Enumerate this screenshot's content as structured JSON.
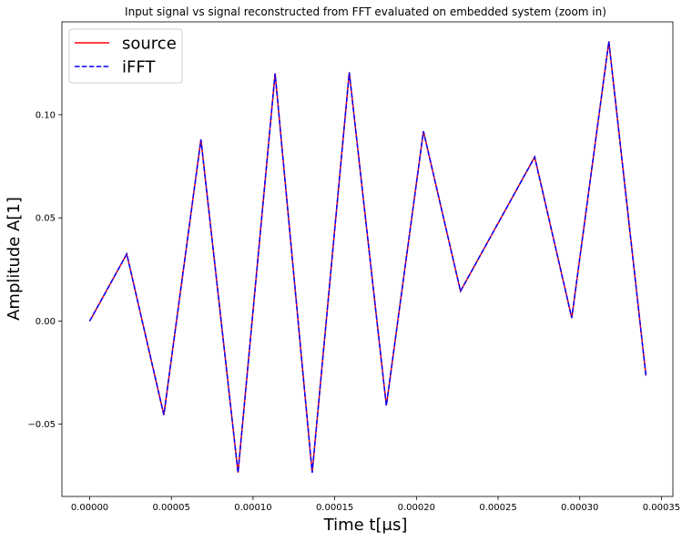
{
  "chart_data": {
    "type": "line",
    "title": "Input signal vs signal reconstructed from FFT evaluated on embedded system (zoom in)",
    "xlabel": "Time t[μs]",
    "ylabel": "Amplitude A[1]",
    "xlim": [
      -1.7e-05,
      0.000357
    ],
    "ylim": [
      -0.085,
      0.145
    ],
    "xticks": [
      0,
      5e-05,
      0.0001,
      0.00015,
      0.0002,
      0.00025,
      0.0003,
      0.00035
    ],
    "xtick_labels": [
      "0.00000",
      "0.00005",
      "0.00010",
      "0.00015",
      "0.00020",
      "0.00025",
      "0.00030",
      "0.00035"
    ],
    "yticks": [
      -0.05,
      0,
      0.05,
      0.1
    ],
    "ytick_labels": [
      "−0.05",
      "0.00",
      "0.05",
      "0.10"
    ],
    "grid": false,
    "legend_position": "top-left",
    "x": [
      0,
      2.27e-05,
      4.54e-05,
      6.81e-05,
      9.08e-05,
      0.0001135,
      0.0001362,
      0.0001589,
      0.0001816,
      0.0002043,
      0.000227,
      0.0002497,
      0.0002724,
      0.0002951,
      0.0003178,
      0.0003405
    ],
    "series": [
      {
        "name": "source",
        "color": "#ff0000",
        "style": "solid",
        "values": [
          0.0,
          0.0325,
          -0.0455,
          0.088,
          -0.0735,
          0.12,
          -0.0735,
          0.1205,
          -0.041,
          0.092,
          0.0145,
          0.047,
          0.0795,
          0.0015,
          0.1355,
          -0.0265
        ]
      },
      {
        "name": "iFFT",
        "color": "#0000ff",
        "style": "dashed",
        "values": [
          0.0,
          0.0325,
          -0.0455,
          0.088,
          -0.0735,
          0.12,
          -0.0735,
          0.1205,
          -0.041,
          0.092,
          0.0145,
          0.047,
          0.0795,
          0.0015,
          0.1355,
          -0.0265
        ]
      }
    ]
  }
}
